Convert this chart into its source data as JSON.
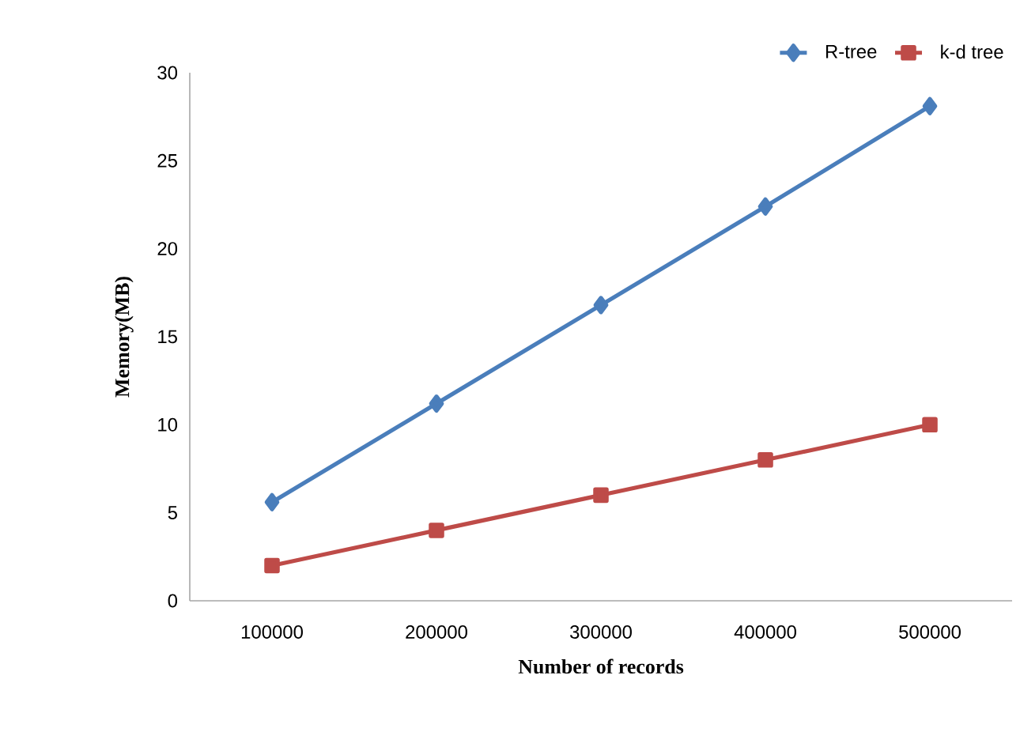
{
  "chart_data": {
    "type": "line",
    "xlabel": "Number of records",
    "ylabel": "Memory(MB)",
    "categories": [
      "100000",
      "200000",
      "300000",
      "400000",
      "500000"
    ],
    "series": [
      {
        "name": "R-tree",
        "color": "#4a7ebb",
        "marker": "diamond",
        "values": [
          5.6,
          11.2,
          16.8,
          22.4,
          28.1
        ]
      },
      {
        "name": "k-d tree",
        "color": "#be4b48",
        "marker": "square",
        "values": [
          2,
          4,
          6,
          8,
          10
        ]
      }
    ],
    "ylim": [
      0,
      30
    ],
    "yticks": [
      0,
      5,
      10,
      15,
      20,
      25,
      30
    ],
    "legend": "top right",
    "grid": false
  }
}
